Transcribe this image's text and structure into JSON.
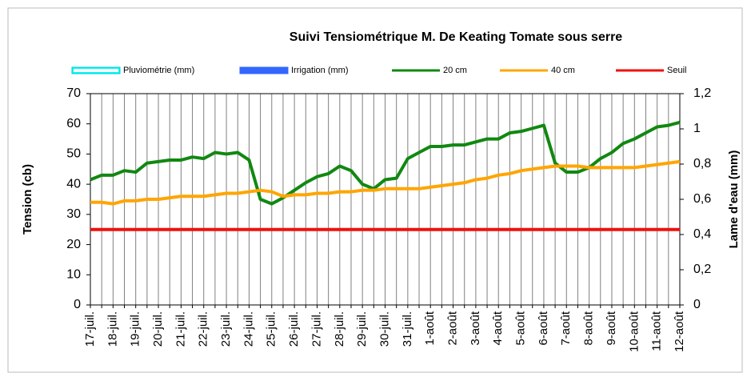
{
  "chart_data": {
    "type": "line",
    "title": "Suivi Tensiométrique M. De Keating Tomate sous serre",
    "ylabel": "Tension (cb)",
    "y2label": "Lame d'eau (mm)",
    "categories": [
      "17-juil.",
      null,
      "18-juil.",
      null,
      "19-juil.",
      null,
      "20-juil.",
      null,
      "21-juil.",
      null,
      "22-juil.",
      null,
      "23-juil.",
      null,
      "24-juil.",
      null,
      "25-juil.",
      null,
      "26-juil.",
      null,
      "27-juil.",
      null,
      "28-juil.",
      null,
      "29-juil.",
      null,
      "30-juil.",
      null,
      "31-juil.",
      null,
      "1-août",
      null,
      "2-août",
      null,
      "3-août",
      null,
      "4-août",
      null,
      "5-août",
      null,
      "6-août",
      null,
      "7-août",
      null,
      "8-août",
      null,
      "9-août",
      null,
      "10-août",
      null,
      "11-août",
      null,
      "12-août"
    ],
    "series": [
      {
        "name": "Pluviométrie (mm)",
        "type": "bar",
        "axis": "y2",
        "color": "#00ffff"
      },
      {
        "name": "Irrigation (mm)",
        "type": "bar",
        "axis": "y2",
        "color": "#3366ff"
      },
      {
        "name": "20 cm",
        "color": "#118811",
        "values": [
          41.5,
          43,
          43,
          44.5,
          44,
          47,
          47.5,
          48,
          48,
          49,
          48.5,
          50.5,
          50,
          50.5,
          48,
          35,
          33.5,
          35.5,
          38,
          40.5,
          42.5,
          43.5,
          46,
          44.5,
          40,
          38.5,
          41.5,
          42,
          48.5,
          50.5,
          52.5,
          52.5,
          53,
          53,
          54,
          55,
          55,
          57,
          57.5,
          58.5,
          59.5,
          47,
          44,
          44,
          45.5,
          48.5,
          50.5,
          53.5,
          55,
          57,
          59,
          59.5,
          60.5
        ]
      },
      {
        "name": "40 cm",
        "color": "#ffa500",
        "values": [
          34,
          34,
          33.5,
          34.5,
          34.5,
          35,
          35,
          35.5,
          36,
          36,
          36,
          36.5,
          37,
          37,
          37.5,
          38,
          37.5,
          36,
          36.5,
          36.5,
          37,
          37,
          37.5,
          37.5,
          38,
          38,
          38.5,
          38.5,
          38.5,
          38.5,
          39,
          39.5,
          40,
          40.5,
          41.5,
          42,
          43,
          43.5,
          44.5,
          45,
          45.5,
          46,
          46,
          46,
          45.5,
          45.5,
          45.5,
          45.5,
          45.5,
          46,
          46.5,
          47,
          47.5
        ]
      },
      {
        "name": "Seuil",
        "color": "#ee1111",
        "values": [
          25,
          25,
          25,
          25,
          25,
          25,
          25,
          25,
          25,
          25,
          25,
          25,
          25,
          25,
          25,
          25,
          25,
          25,
          25,
          25,
          25,
          25,
          25,
          25,
          25,
          25,
          25,
          25,
          25,
          25,
          25,
          25,
          25,
          25,
          25,
          25,
          25,
          25,
          25,
          25,
          25,
          25,
          25,
          25,
          25,
          25,
          25,
          25,
          25,
          25,
          25,
          25,
          25
        ]
      }
    ],
    "ylim": [
      0,
      70
    ],
    "yticks": [
      0,
      10,
      20,
      30,
      40,
      50,
      60,
      70
    ],
    "y2lim": [
      0,
      1.2
    ],
    "y2ticks": [
      0,
      {
        "value": 0.2,
        "label": "0,2"
      },
      {
        "value": 0.4,
        "label": "0,4"
      },
      {
        "value": 0.6,
        "label": "0,6"
      },
      {
        "value": 0.8,
        "label": "0,8"
      },
      1,
      {
        "value": 1.2,
        "label": "1,2"
      }
    ],
    "grid": true,
    "legend": "top"
  }
}
